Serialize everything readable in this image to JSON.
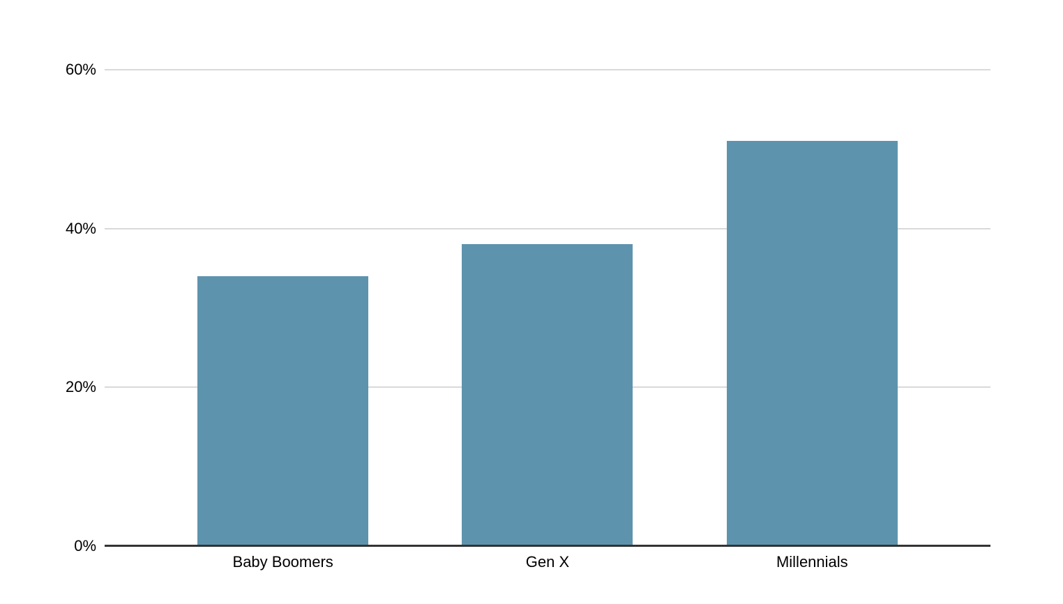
{
  "chart_data": {
    "type": "bar",
    "title": "",
    "xlabel": "",
    "ylabel": "",
    "categories": [
      "Baby Boomers",
      "Gen X",
      "Millennials"
    ],
    "values": [
      34,
      38,
      51
    ],
    "value_unit": "%",
    "ylim": [
      0,
      60
    ],
    "yticks": [
      0,
      20,
      40,
      60
    ],
    "ytick_labels": [
      "0%",
      "20%",
      "40%",
      "60%"
    ],
    "legend": "none",
    "grid": "horizontal",
    "colors": {
      "bar": "#5E93AE",
      "gridline": "#D9D9D9",
      "axis_line": "#333333",
      "text": "#000000",
      "background": "#FFFFFF"
    }
  }
}
